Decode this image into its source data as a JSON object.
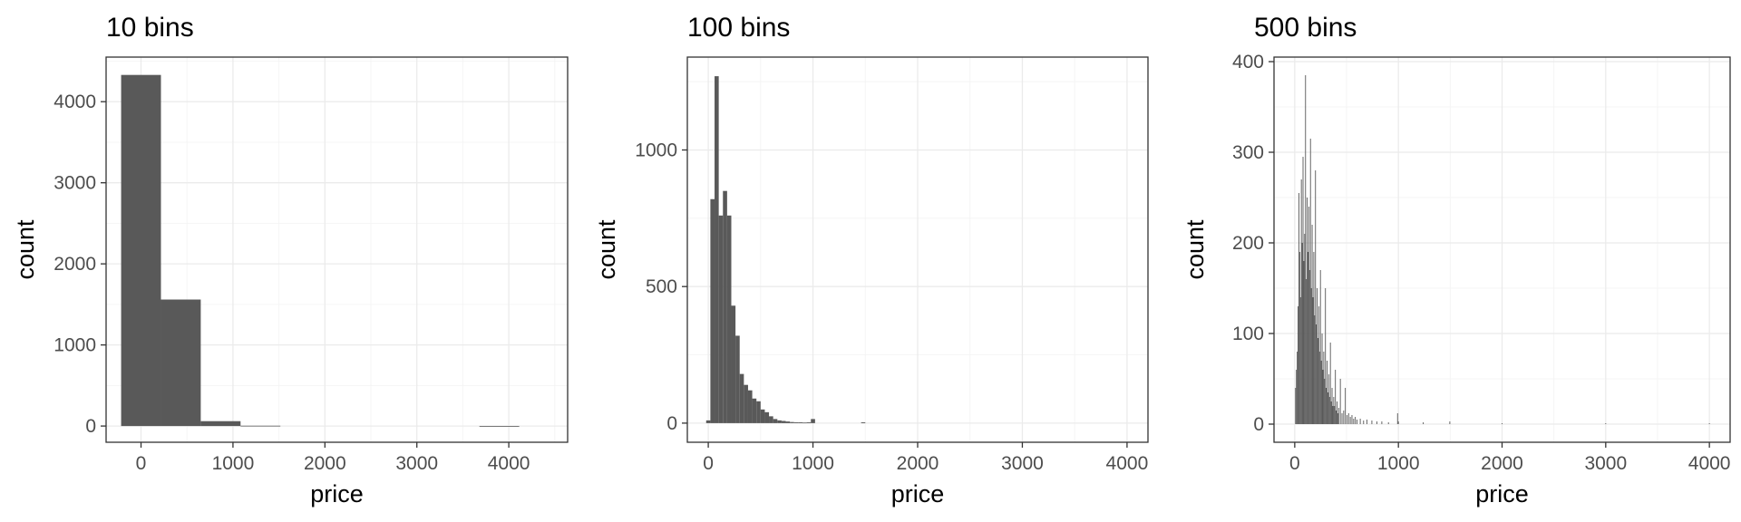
{
  "chart_data": [
    {
      "type": "bar",
      "title": "10 bins",
      "xlabel": "price",
      "ylabel": "count",
      "xlim": [
        -380,
        4640
      ],
      "ylim": [
        -200,
        4550
      ],
      "xticks": [
        0,
        1000,
        2000,
        3000,
        4000
      ],
      "yticks": [
        0,
        1000,
        2000,
        3000,
        4000
      ],
      "bin_width": 433,
      "bins": [
        {
          "x": 0,
          "count": 4330
        },
        {
          "x": 433,
          "count": 1560
        },
        {
          "x": 866,
          "count": 60
        },
        {
          "x": 1299,
          "count": 4
        },
        {
          "x": 1732,
          "count": 0
        },
        {
          "x": 2165,
          "count": 0
        },
        {
          "x": 2598,
          "count": 0
        },
        {
          "x": 3031,
          "count": 0
        },
        {
          "x": 3464,
          "count": 0
        },
        {
          "x": 3897,
          "count": 1
        }
      ]
    },
    {
      "type": "bar",
      "title": "100 bins",
      "xlabel": "price",
      "ylabel": "count",
      "xlim": [
        -200,
        4200
      ],
      "ylim": [
        -70,
        1340
      ],
      "xticks": [
        0,
        1000,
        2000,
        3000,
        4000
      ],
      "yticks": [
        0,
        500,
        1000
      ],
      "bin_width": 40,
      "bins": [
        {
          "x": 0,
          "count": 10
        },
        {
          "x": 40,
          "count": 820
        },
        {
          "x": 80,
          "count": 1270
        },
        {
          "x": 120,
          "count": 760
        },
        {
          "x": 160,
          "count": 850
        },
        {
          "x": 200,
          "count": 760
        },
        {
          "x": 240,
          "count": 430
        },
        {
          "x": 280,
          "count": 320
        },
        {
          "x": 320,
          "count": 180
        },
        {
          "x": 360,
          "count": 140
        },
        {
          "x": 400,
          "count": 120
        },
        {
          "x": 440,
          "count": 90
        },
        {
          "x": 480,
          "count": 80
        },
        {
          "x": 520,
          "count": 50
        },
        {
          "x": 560,
          "count": 40
        },
        {
          "x": 600,
          "count": 25
        },
        {
          "x": 640,
          "count": 15
        },
        {
          "x": 680,
          "count": 10
        },
        {
          "x": 720,
          "count": 8
        },
        {
          "x": 760,
          "count": 6
        },
        {
          "x": 800,
          "count": 4
        },
        {
          "x": 840,
          "count": 3
        },
        {
          "x": 880,
          "count": 3
        },
        {
          "x": 920,
          "count": 2
        },
        {
          "x": 960,
          "count": 3
        },
        {
          "x": 1000,
          "count": 15
        },
        {
          "x": 1480,
          "count": 3
        }
      ]
    },
    {
      "type": "bar",
      "title": "500 bins",
      "xlabel": "price",
      "ylabel": "count",
      "xlim": [
        -200,
        4200
      ],
      "ylim": [
        -20,
        405
      ],
      "xticks": [
        0,
        1000,
        2000,
        3000,
        4000
      ],
      "yticks": [
        0,
        100,
        200,
        300,
        400
      ],
      "bin_width": 8,
      "bins": [
        {
          "x": 8,
          "count": 40
        },
        {
          "x": 16,
          "count": 60
        },
        {
          "x": 24,
          "count": 80
        },
        {
          "x": 32,
          "count": 130
        },
        {
          "x": 40,
          "count": 255
        },
        {
          "x": 48,
          "count": 190
        },
        {
          "x": 56,
          "count": 140
        },
        {
          "x": 64,
          "count": 270
        },
        {
          "x": 72,
          "count": 200
        },
        {
          "x": 80,
          "count": 295
        },
        {
          "x": 88,
          "count": 180
        },
        {
          "x": 96,
          "count": 210
        },
        {
          "x": 104,
          "count": 385
        },
        {
          "x": 112,
          "count": 160
        },
        {
          "x": 120,
          "count": 250
        },
        {
          "x": 128,
          "count": 190
        },
        {
          "x": 136,
          "count": 240
        },
        {
          "x": 144,
          "count": 170
        },
        {
          "x": 152,
          "count": 315
        },
        {
          "x": 160,
          "count": 150
        },
        {
          "x": 168,
          "count": 220
        },
        {
          "x": 176,
          "count": 140
        },
        {
          "x": 184,
          "count": 190
        },
        {
          "x": 192,
          "count": 120
        },
        {
          "x": 200,
          "count": 280
        },
        {
          "x": 208,
          "count": 110
        },
        {
          "x": 216,
          "count": 150
        },
        {
          "x": 224,
          "count": 95
        },
        {
          "x": 232,
          "count": 130
        },
        {
          "x": 240,
          "count": 80
        },
        {
          "x": 248,
          "count": 170
        },
        {
          "x": 256,
          "count": 70
        },
        {
          "x": 264,
          "count": 100
        },
        {
          "x": 272,
          "count": 60
        },
        {
          "x": 280,
          "count": 80
        },
        {
          "x": 288,
          "count": 50
        },
        {
          "x": 296,
          "count": 150
        },
        {
          "x": 304,
          "count": 40
        },
        {
          "x": 312,
          "count": 70
        },
        {
          "x": 320,
          "count": 35
        },
        {
          "x": 328,
          "count": 55
        },
        {
          "x": 336,
          "count": 30
        },
        {
          "x": 344,
          "count": 90
        },
        {
          "x": 352,
          "count": 25
        },
        {
          "x": 360,
          "count": 40
        },
        {
          "x": 368,
          "count": 20
        },
        {
          "x": 376,
          "count": 30
        },
        {
          "x": 384,
          "count": 20
        },
        {
          "x": 392,
          "count": 60
        },
        {
          "x": 400,
          "count": 15
        },
        {
          "x": 408,
          "count": 25
        },
        {
          "x": 416,
          "count": 12
        },
        {
          "x": 424,
          "count": 18
        },
        {
          "x": 440,
          "count": 50
        },
        {
          "x": 456,
          "count": 12
        },
        {
          "x": 472,
          "count": 15
        },
        {
          "x": 488,
          "count": 40
        },
        {
          "x": 504,
          "count": 10
        },
        {
          "x": 520,
          "count": 12
        },
        {
          "x": 536,
          "count": 8
        },
        {
          "x": 552,
          "count": 10
        },
        {
          "x": 568,
          "count": 6
        },
        {
          "x": 584,
          "count": 8
        },
        {
          "x": 600,
          "count": 5
        },
        {
          "x": 632,
          "count": 6
        },
        {
          "x": 664,
          "count": 4
        },
        {
          "x": 696,
          "count": 5
        },
        {
          "x": 744,
          "count": 4
        },
        {
          "x": 792,
          "count": 3
        },
        {
          "x": 840,
          "count": 3
        },
        {
          "x": 904,
          "count": 2
        },
        {
          "x": 992,
          "count": 12
        },
        {
          "x": 1000,
          "count": 3
        },
        {
          "x": 1240,
          "count": 2
        },
        {
          "x": 1496,
          "count": 3
        },
        {
          "x": 2000,
          "count": 1
        },
        {
          "x": 3000,
          "count": 1
        },
        {
          "x": 4000,
          "count": 1
        }
      ]
    }
  ]
}
